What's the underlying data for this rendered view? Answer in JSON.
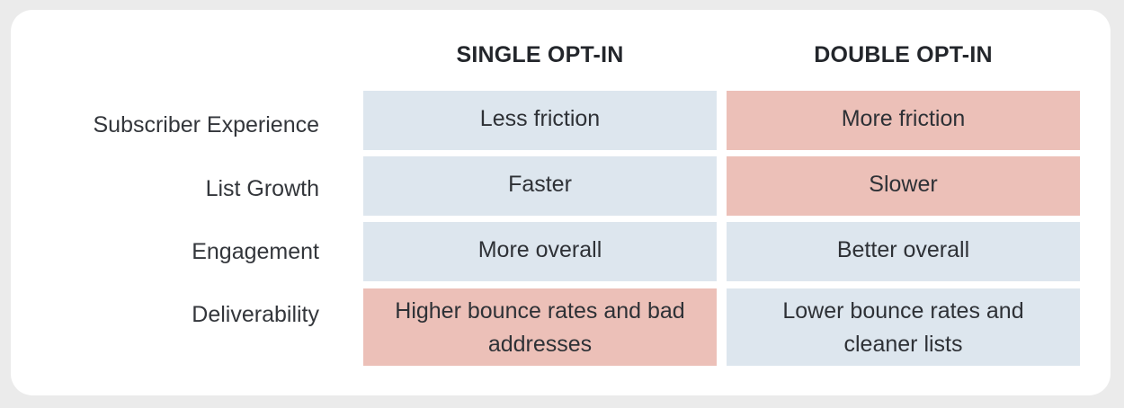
{
  "colors": {
    "background": "#ebebeb",
    "card": "#ffffff",
    "favorable": "#dde6ee",
    "unfavorable": "#ecc0b8",
    "text": "#2e3136"
  },
  "columns": [
    "SINGLE OPT-IN",
    "DOUBLE OPT-IN"
  ],
  "rows": [
    {
      "label": "Subscriber Experience",
      "single": "Less friction",
      "double": "More friction",
      "single_tone": "favorable",
      "double_tone": "unfavorable"
    },
    {
      "label": "List Growth",
      "single": "Faster",
      "double": "Slower",
      "single_tone": "favorable",
      "double_tone": "unfavorable"
    },
    {
      "label": "Engagement",
      "single": "More overall",
      "double": "Better overall",
      "single_tone": "favorable",
      "double_tone": "favorable"
    },
    {
      "label": "Deliverability",
      "single": "Higher bounce rates and bad addresses",
      "double": "Lower bounce rates and cleaner lists",
      "single_tone": "unfavorable",
      "double_tone": "favorable"
    }
  ]
}
